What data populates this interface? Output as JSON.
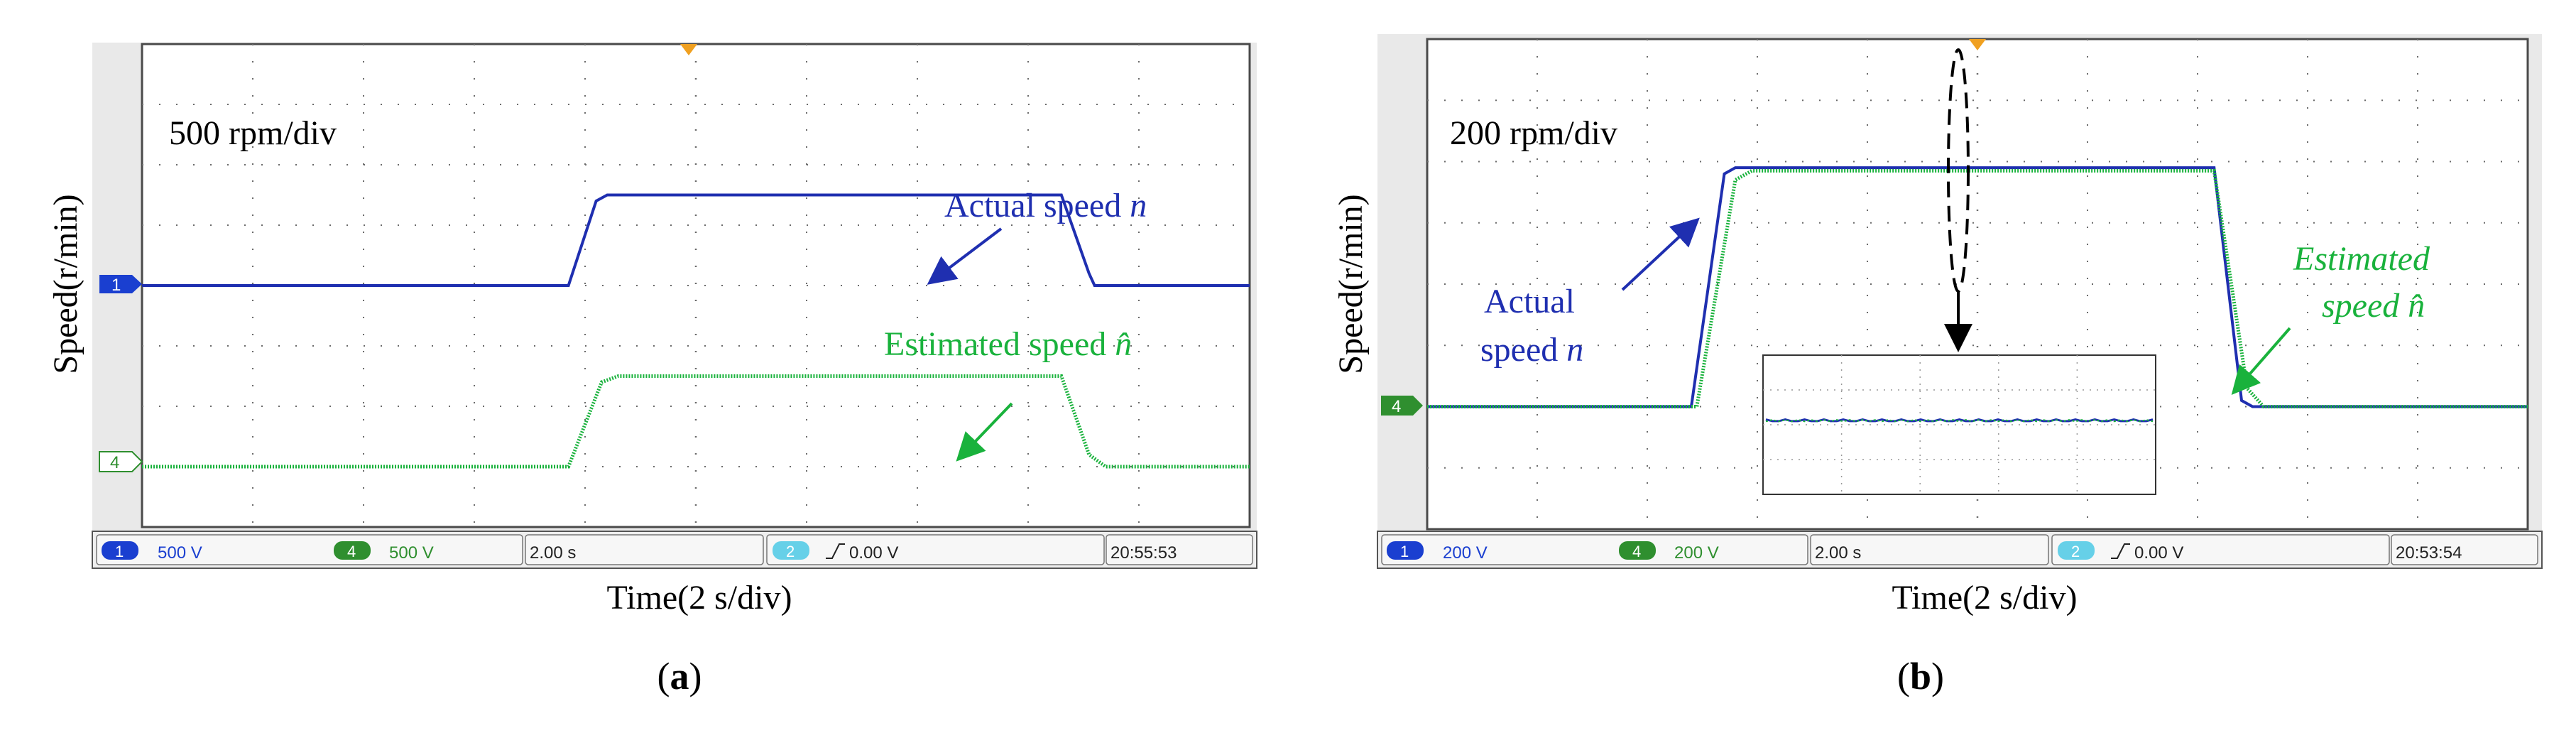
{
  "colors": {
    "actual": "#1f2fb0",
    "estimated": "#19b23c",
    "grid": "#6b6b6b",
    "screen_bg": "#ffffff",
    "status_bar": "#efefef",
    "ch1_badge": "#1a3fd0",
    "ch4_badge": "#2f8f2f",
    "ch2_badge": "#66d0e8"
  },
  "chart_data": [
    {
      "id": "a",
      "type": "line",
      "panel_label": "a",
      "ylabel": "Speed(r/min)",
      "xlabel": "Time(2 s/div)",
      "scale_text": "500 rpm/div",
      "x_divisions": 10,
      "y_divisions": 8,
      "x_range": [
        0,
        20
      ],
      "y_unit": "divisions",
      "ch1_marker": "1",
      "ch4_marker": "4",
      "series": [
        {
          "name": "Actual speed n",
          "channel": "1",
          "points": [
            [
              0,
              4.0
            ],
            [
              7.7,
              4.0
            ],
            [
              8.2,
              5.4
            ],
            [
              8.4,
              5.5
            ],
            [
              16.6,
              5.5
            ],
            [
              17.1,
              4.2
            ],
            [
              17.2,
              4.0
            ],
            [
              20,
              4.0
            ]
          ]
        },
        {
          "name": "Estimated speed n-hat",
          "channel": "4",
          "points": [
            [
              0,
              1.0
            ],
            [
              7.7,
              1.0
            ],
            [
              8.3,
              2.4
            ],
            [
              8.6,
              2.5
            ],
            [
              16.6,
              2.5
            ],
            [
              17.1,
              1.2
            ],
            [
              17.4,
              1.0
            ],
            [
              20,
              1.0
            ]
          ]
        }
      ],
      "annotations": {
        "actual": {
          "prefix": "Actual speed ",
          "symbol": "n"
        },
        "estimated": {
          "prefix": "Estimated speed ",
          "symbol": "n̂"
        }
      },
      "status": {
        "ch1_num": "1",
        "ch1_val": "500 V",
        "ch4_num": "4",
        "ch4_val": "500 V",
        "timebase": "2.00 s",
        "ch2_num": "2",
        "trigger": "0.00 V",
        "clock": "20:55:53"
      }
    },
    {
      "id": "b",
      "type": "line",
      "panel_label": "b",
      "ylabel": "Speed(r/min)",
      "xlabel": "Time(2 s/div)",
      "scale_text": "200 rpm/div",
      "x_divisions": 10,
      "y_divisions": 8,
      "x_range": [
        0,
        20
      ],
      "y_unit": "divisions",
      "ch4_marker": "4",
      "series": [
        {
          "name": "Actual speed n",
          "channel": "1",
          "points": [
            [
              0,
              2.0
            ],
            [
              4.8,
              2.0
            ],
            [
              5.4,
              5.8
            ],
            [
              5.6,
              5.9
            ],
            [
              14.3,
              5.9
            ],
            [
              14.8,
              2.1
            ],
            [
              15.0,
              2.0
            ],
            [
              20,
              2.0
            ]
          ]
        },
        {
          "name": "Estimated speed n-hat",
          "channel": "4",
          "points": [
            [
              0,
              2.0
            ],
            [
              4.9,
              2.0
            ],
            [
              5.6,
              5.7
            ],
            [
              5.9,
              5.85
            ],
            [
              14.3,
              5.85
            ],
            [
              14.9,
              2.3
            ],
            [
              15.2,
              2.0
            ],
            [
              20,
              2.0
            ]
          ]
        }
      ],
      "annotations": {
        "actual_line1": "Actual",
        "actual_line2_prefix": "speed ",
        "actual_symbol": "n",
        "estimated_line1": "Estimated",
        "estimated_line2_prefix": "speed ",
        "estimated_symbol": "n̂"
      },
      "status": {
        "ch1_num": "1",
        "ch1_val": "200 V",
        "ch4_num": "4",
        "ch4_val": "200 V",
        "timebase": "2.00 s",
        "ch2_num": "2",
        "trigger": "0.00 V",
        "clock": "20:53:54"
      }
    }
  ]
}
